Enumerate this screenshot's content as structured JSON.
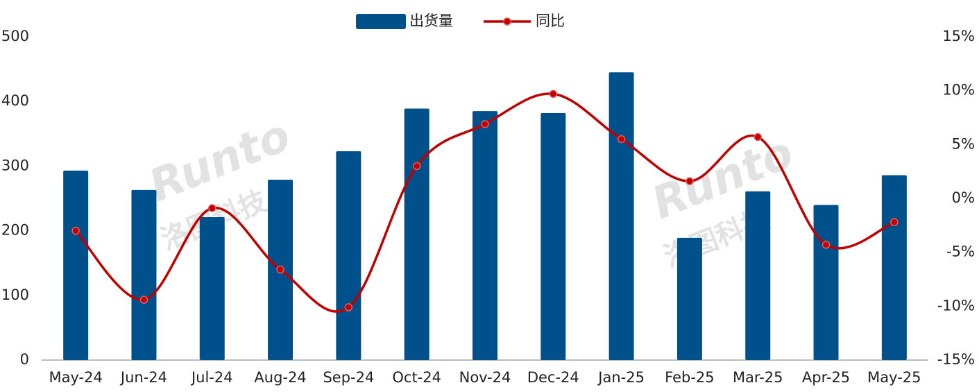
{
  "chart_data": {
    "type": "bar-line",
    "watermark": [
      "Runto",
      "洛图科技"
    ],
    "categories": [
      "May-24",
      "Jun-24",
      "Jul-24",
      "Aug-24",
      "Sep-24",
      "Oct-24",
      "Nov-24",
      "Dec-24",
      "Jan-25",
      "Feb-25",
      "Mar-25",
      "Apr-25",
      "May-25"
    ],
    "series": [
      {
        "name": "出货量",
        "color": "#00508c",
        "type": "bar",
        "values": [
          293,
          263,
          221,
          279,
          323,
          389,
          385,
          382,
          445,
          189,
          261,
          240,
          286
        ]
      },
      {
        "name": "同比",
        "color": "#c00000",
        "type": "line",
        "axis": "y2",
        "values": [
          -3.0,
          -9.4,
          -0.9,
          -6.6,
          -10.1,
          3.0,
          6.9,
          9.7,
          5.5,
          1.6,
          5.7,
          -4.3,
          -2.2
        ]
      }
    ],
    "ylim": [
      0,
      500
    ],
    "yticks": [
      0,
      100,
      200,
      300,
      400,
      500
    ],
    "y2lim": [
      -15,
      15
    ],
    "y2ticks": [
      {
        "value": -15,
        "label": "-15%"
      },
      {
        "value": -10,
        "label": "-10%"
      },
      {
        "value": -5,
        "label": "-5%"
      },
      {
        "value": 0,
        "label": "0%"
      },
      {
        "value": 5,
        "label": "5%"
      },
      {
        "value": 10,
        "label": "10%"
      },
      {
        "value": 15,
        "label": "15%"
      }
    ],
    "legend": "top"
  }
}
